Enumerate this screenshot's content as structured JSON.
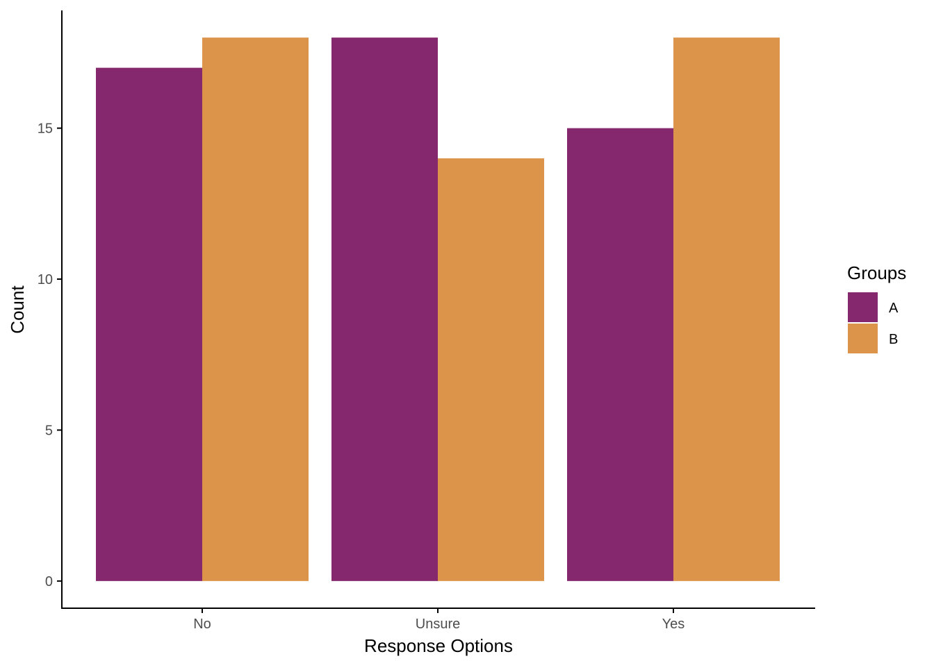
{
  "chart_data": {
    "type": "bar",
    "categories": [
      "No",
      "Unsure",
      "Yes"
    ],
    "series": [
      {
        "name": "A",
        "values": [
          17,
          18,
          15
        ],
        "color": "#85286E"
      },
      {
        "name": "B",
        "values": [
          18,
          14,
          18
        ],
        "color": "#DB9449"
      }
    ],
    "xlabel": "Response Options",
    "ylabel": "Count",
    "y_ticks": [
      0,
      5,
      10,
      15
    ],
    "ylim": [
      -0.9,
      18.9
    ],
    "grid": false,
    "legend": {
      "title": "Groups",
      "placement": "right"
    }
  }
}
